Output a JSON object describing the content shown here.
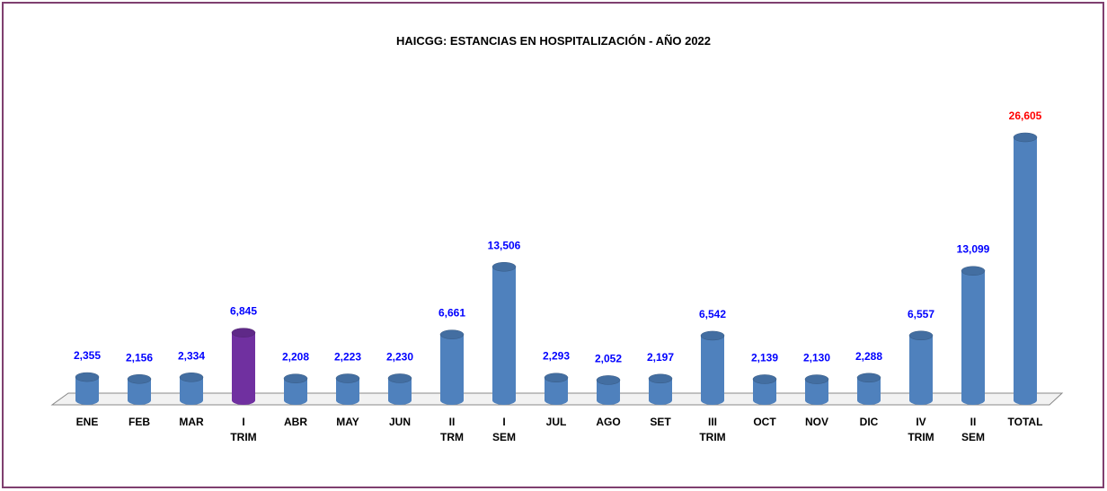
{
  "chart_data": {
    "type": "bar",
    "title": "HAICGG: ESTANCIAS EN HOSPITALIZACIÓN - AÑO 2022",
    "categories": [
      "ENE",
      "FEB",
      "MAR",
      "I TRIM",
      "ABR",
      "MAY",
      "JUN",
      "II TRM",
      "I SEM",
      "JUL",
      "AGO",
      "SET",
      "III TRIM",
      "OCT",
      "NOV",
      "DIC",
      "IV TRIM",
      "II SEM",
      "TOTAL"
    ],
    "values": [
      2355,
      2156,
      2334,
      6845,
      2208,
      2223,
      2230,
      6661,
      13506,
      2293,
      2052,
      2197,
      6542,
      2139,
      2130,
      2288,
      6557,
      13099,
      26605
    ],
    "value_labels": [
      "2,355",
      "2,156",
      "2,334",
      "6,845",
      "2,208",
      "2,223",
      "2,230",
      "6,661",
      "13,506",
      "2,293",
      "2,052",
      "2,197",
      "6,542",
      "2,139",
      "2,130",
      "2,288",
      "6,557",
      "13,099",
      "26,605"
    ],
    "colors": [
      "#4f81bd",
      "#4f81bd",
      "#4f81bd",
      "#7030a0",
      "#4f81bd",
      "#4f81bd",
      "#4f81bd",
      "#4f81bd",
      "#4f81bd",
      "#4f81bd",
      "#4f81bd",
      "#4f81bd",
      "#4f81bd",
      "#4f81bd",
      "#4f81bd",
      "#4f81bd",
      "#4f81bd",
      "#4f81bd",
      "#4f81bd"
    ],
    "label_colors": [
      "#0000ff",
      "#0000ff",
      "#0000ff",
      "#0000ff",
      "#0000ff",
      "#0000ff",
      "#0000ff",
      "#0000ff",
      "#0000ff",
      "#0000ff",
      "#0000ff",
      "#0000ff",
      "#0000ff",
      "#0000ff",
      "#0000ff",
      "#0000ff",
      "#0000ff",
      "#0000ff",
      "#ff0000"
    ]
  }
}
